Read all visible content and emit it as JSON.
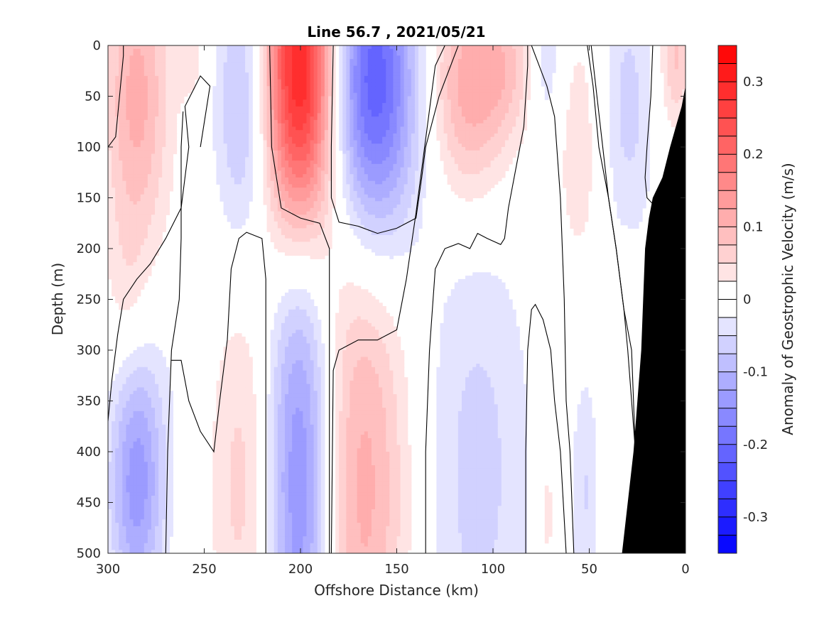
{
  "chart_data": {
    "type": "heatmap",
    "title": "Line 56.7 , 2021/05/21",
    "xlabel": "Offshore Distance (km)",
    "ylabel": "Depth (m)",
    "colorbar_label": "Anomaly of Geostrophic Velocity (m/s)",
    "xlim": [
      300,
      0
    ],
    "ylim": [
      0,
      500
    ],
    "x_reversed": true,
    "y_reversed": true,
    "x_ticks": [
      300,
      250,
      200,
      150,
      100,
      50,
      0
    ],
    "y_ticks": [
      0,
      50,
      100,
      150,
      200,
      250,
      300,
      350,
      400,
      450,
      500
    ],
    "clim": [
      -0.35,
      0.35
    ],
    "colorbar_step": 0.025,
    "colorbar_ticks": [
      {
        "value": 0.3,
        "label": "0.3"
      },
      {
        "value": 0.2,
        "label": "0.2"
      },
      {
        "value": 0.1,
        "label": "0.1"
      },
      {
        "value": 0,
        "label": "0"
      },
      {
        "value": -0.1,
        "label": "-0.1"
      },
      {
        "value": -0.2,
        "label": "-0.2"
      },
      {
        "value": -0.3,
        "label": "-0.3"
      }
    ],
    "positive_color": "#ff0000",
    "negative_color": "#0000ff",
    "bathymetry_color": "#000000",
    "grid": false,
    "features": [
      {
        "x": 285,
        "depth": 50,
        "value": 0.11,
        "sx": 12,
        "sy": 110
      },
      {
        "x": 270,
        "depth": 330,
        "value": -0.01,
        "sx": 10,
        "sy": 80
      },
      {
        "x": 290,
        "depth": 250,
        "value": 0.03,
        "sx": 8,
        "sy": 60
      },
      {
        "x": 285,
        "depth": 430,
        "value": -0.14,
        "sx": 10,
        "sy": 90
      },
      {
        "x": 257,
        "depth": 10,
        "value": 0.04,
        "sx": 6,
        "sy": 30
      },
      {
        "x": 230,
        "depth": 60,
        "value": -0.09,
        "sx": 10,
        "sy": 100
      },
      {
        "x": 230,
        "depth": 430,
        "value": 0.06,
        "sx": 12,
        "sy": 140
      },
      {
        "x": 200,
        "depth": 30,
        "value": 0.33,
        "sx": 13,
        "sy": 120
      },
      {
        "x": 200,
        "depth": 420,
        "value": -0.16,
        "sx": 12,
        "sy": 200
      },
      {
        "x": 162,
        "depth": 40,
        "value": -0.23,
        "sx": 16,
        "sy": 110
      },
      {
        "x": 168,
        "depth": 430,
        "value": 0.11,
        "sx": 17,
        "sy": 190
      },
      {
        "x": 112,
        "depth": 40,
        "value": 0.12,
        "sx": 15,
        "sy": 80
      },
      {
        "x": 92,
        "depth": 20,
        "value": 0.05,
        "sx": 10,
        "sy": 50
      },
      {
        "x": 108,
        "depth": 420,
        "value": -0.06,
        "sx": 20,
        "sy": 180
      },
      {
        "x": 72,
        "depth": 20,
        "value": -0.05,
        "sx": 6,
        "sy": 50
      },
      {
        "x": 55,
        "depth": 100,
        "value": 0.04,
        "sx": 10,
        "sy": 100
      },
      {
        "x": 72,
        "depth": 460,
        "value": 0.04,
        "sx": 4,
        "sy": 70
      },
      {
        "x": 52,
        "depth": 440,
        "value": -0.05,
        "sx": 5,
        "sy": 90
      },
      {
        "x": 30,
        "depth": 60,
        "value": -0.06,
        "sx": 10,
        "sy": 100
      },
      {
        "x": 30,
        "depth": 280,
        "value": 0.03,
        "sx": 3,
        "sy": 50
      },
      {
        "x": 5,
        "depth": 10,
        "value": 0.08,
        "sx": 6,
        "sy": 50
      }
    ],
    "zero_contours": [
      [
        [
          300,
          370
        ],
        [
          298,
          330
        ],
        [
          295,
          285
        ],
        [
          292,
          250
        ],
        [
          285,
          230
        ],
        [
          278,
          215
        ],
        [
          270,
          190
        ],
        [
          262,
          160
        ],
        [
          258,
          100
        ],
        [
          260,
          60
        ],
        [
          252,
          30
        ],
        [
          247,
          40
        ],
        [
          252,
          100
        ]
      ],
      [
        [
          270,
          500
        ],
        [
          269,
          400
        ],
        [
          267,
          300
        ],
        [
          263,
          250
        ],
        [
          262,
          190
        ],
        [
          262,
          140
        ],
        [
          262,
          100
        ],
        [
          261,
          65
        ]
      ],
      [
        [
          267,
          310
        ],
        [
          262,
          310
        ],
        [
          258,
          350
        ],
        [
          252,
          380
        ],
        [
          245,
          400
        ],
        [
          242,
          350
        ],
        [
          238,
          290
        ],
        [
          236,
          220
        ],
        [
          232,
          190
        ],
        [
          228,
          184
        ],
        [
          220,
          190
        ],
        [
          218,
          230
        ],
        [
          218,
          500
        ]
      ],
      [
        [
          303,
          110
        ],
        [
          300,
          100
        ],
        [
          296,
          90
        ],
        [
          292,
          10
        ],
        [
          292,
          0
        ]
      ],
      [
        [
          185,
          500
        ],
        [
          185,
          320
        ],
        [
          185,
          200
        ],
        [
          190,
          175
        ],
        [
          200,
          170
        ],
        [
          210,
          160
        ],
        [
          215,
          100
        ],
        [
          216,
          0
        ]
      ],
      [
        [
          184,
          500
        ],
        [
          183,
          320
        ],
        [
          180,
          300
        ],
        [
          170,
          290
        ],
        [
          160,
          290
        ],
        [
          150,
          280
        ],
        [
          145,
          230
        ],
        [
          140,
          165
        ],
        [
          130,
          20
        ],
        [
          125,
          0
        ]
      ],
      [
        [
          183,
          0
        ],
        [
          184,
          100
        ],
        [
          184,
          150
        ],
        [
          180,
          174
        ],
        [
          170,
          178
        ],
        [
          160,
          185
        ],
        [
          150,
          180
        ],
        [
          140,
          170
        ],
        [
          137,
          130
        ],
        [
          135,
          100
        ],
        [
          128,
          50
        ],
        [
          118,
          0
        ]
      ],
      [
        [
          135,
          500
        ],
        [
          135,
          400
        ],
        [
          133,
          300
        ],
        [
          130,
          220
        ],
        [
          125,
          200
        ],
        [
          118,
          195
        ],
        [
          112,
          200
        ],
        [
          108,
          185
        ],
        [
          103,
          190
        ],
        [
          96,
          196
        ],
        [
          94,
          190
        ],
        [
          92,
          160
        ],
        [
          88,
          120
        ],
        [
          84,
          80
        ],
        [
          82,
          20
        ],
        [
          82,
          0
        ]
      ],
      [
        [
          83,
          500
        ],
        [
          83,
          400
        ],
        [
          82,
          300
        ],
        [
          80,
          260
        ],
        [
          78,
          255
        ],
        [
          74,
          270
        ],
        [
          70,
          300
        ],
        [
          68,
          350
        ],
        [
          65,
          400
        ],
        [
          62,
          500
        ]
      ],
      [
        [
          80,
          0
        ],
        [
          72,
          40
        ],
        [
          68,
          70
        ],
        [
          65,
          150
        ],
        [
          63,
          250
        ],
        [
          62,
          350
        ],
        [
          60,
          400
        ],
        [
          58,
          500
        ]
      ],
      [
        [
          51,
          0
        ],
        [
          48,
          40
        ],
        [
          45,
          100
        ],
        [
          40,
          150
        ],
        [
          36,
          200
        ],
        [
          32,
          260
        ],
        [
          30,
          300
        ],
        [
          28,
          350
        ],
        [
          26,
          400
        ],
        [
          24,
          500
        ]
      ],
      [
        [
          49,
          0
        ],
        [
          46,
          50
        ],
        [
          43,
          100
        ],
        [
          40,
          150
        ],
        [
          36,
          200
        ],
        [
          32,
          260
        ],
        [
          28,
          300
        ],
        [
          26,
          400
        ],
        [
          24,
          500
        ]
      ],
      [
        [
          17,
          0
        ],
        [
          18,
          50
        ],
        [
          20,
          100
        ],
        [
          21,
          130
        ],
        [
          20,
          150
        ],
        [
          15,
          160
        ]
      ]
    ],
    "bathymetry": [
      [
        33,
        500
      ],
      [
        30,
        450
      ],
      [
        27,
        400
      ],
      [
        25,
        350
      ],
      [
        23,
        300
      ],
      [
        22,
        250
      ],
      [
        21,
        200
      ],
      [
        19,
        170
      ],
      [
        17,
        150
      ],
      [
        12,
        130
      ],
      [
        8,
        100
      ],
      [
        5,
        80
      ],
      [
        2,
        60
      ],
      [
        0,
        40
      ],
      [
        0,
        500
      ]
    ]
  }
}
